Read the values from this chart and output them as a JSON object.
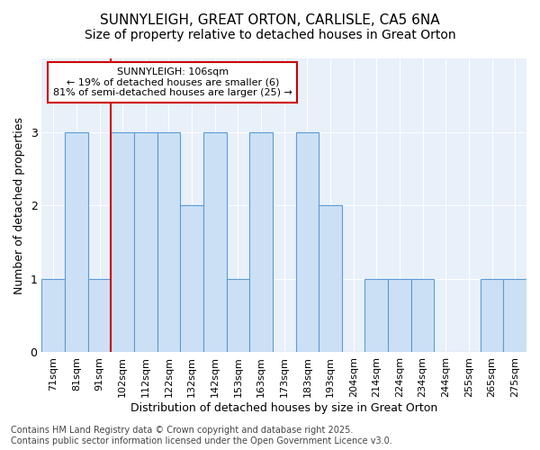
{
  "title_line1": "SUNNYLEIGH, GREAT ORTON, CARLISLE, CA5 6NA",
  "title_line2": "Size of property relative to detached houses in Great Orton",
  "xlabel": "Distribution of detached houses by size in Great Orton",
  "ylabel": "Number of detached properties",
  "categories": [
    "71sqm",
    "81sqm",
    "91sqm",
    "102sqm",
    "112sqm",
    "122sqm",
    "132sqm",
    "142sqm",
    "153sqm",
    "163sqm",
    "173sqm",
    "183sqm",
    "193sqm",
    "204sqm",
    "214sqm",
    "224sqm",
    "234sqm",
    "244sqm",
    "255sqm",
    "265sqm",
    "275sqm"
  ],
  "values": [
    1,
    3,
    1,
    3,
    3,
    3,
    2,
    3,
    1,
    3,
    0,
    3,
    2,
    0,
    1,
    1,
    1,
    0,
    0,
    1,
    1
  ],
  "bar_color": "#cce0f5",
  "bar_edge_color": "#5b9bd5",
  "highlight_index": 3,
  "highlight_line_color": "#cc0000",
  "ylim": [
    0,
    4
  ],
  "yticks": [
    0,
    1,
    2,
    3,
    4
  ],
  "annotation_text": "SUNNYLEIGH: 106sqm\n← 19% of detached houses are smaller (6)\n81% of semi-detached houses are larger (25) →",
  "annotation_box_color": "#ffffff",
  "annotation_box_edge_color": "#cc0000",
  "footer_text": "Contains HM Land Registry data © Crown copyright and database right 2025.\nContains public sector information licensed under the Open Government Licence v3.0.",
  "fig_background_color": "#ffffff",
  "plot_background_color": "#e8f0fa",
  "title_fontsize": 11,
  "subtitle_fontsize": 10,
  "axis_label_fontsize": 9,
  "tick_fontsize": 8,
  "annotation_fontsize": 8,
  "footer_fontsize": 7
}
